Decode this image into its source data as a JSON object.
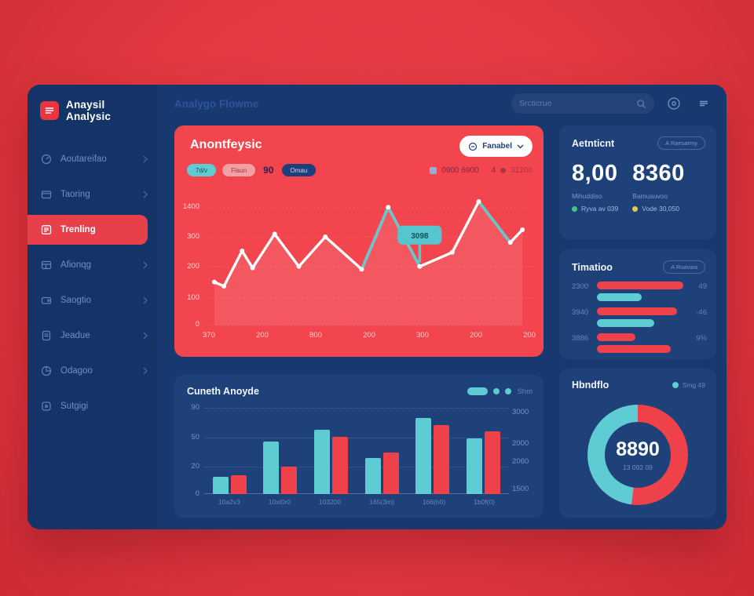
{
  "colors": {
    "bg_red": "#e33941",
    "card_red": "#f2454d",
    "accent_red": "#ef4149",
    "teal": "#5fcbd2",
    "window_navy": "#17396f",
    "card_navy": "#1e4179",
    "green_dot": "#46c483",
    "yellow_dot": "#e5c84e",
    "pink": "#f2a0a4"
  },
  "sidebar": {
    "logo_title": "Anaysil Analysic",
    "items": [
      {
        "label": "Aoutareifao",
        "icon": "analytics-icon"
      },
      {
        "label": "Taoring",
        "icon": "folder-icon"
      },
      {
        "label": "Trenling",
        "icon": "trending-icon",
        "active": true
      },
      {
        "label": "Afionqg",
        "icon": "layers-icon"
      },
      {
        "label": "Saogtio",
        "icon": "wallet-icon"
      },
      {
        "label": "Jeadue",
        "icon": "report-icon"
      },
      {
        "label": "Odagoo",
        "icon": "pie-icon"
      },
      {
        "label": "Sutgigi",
        "icon": "settings-icon"
      }
    ]
  },
  "topbar": {
    "title": "Analygo Flowme",
    "search_placeholder": "Srcticrue"
  },
  "anomaly_card": {
    "title": "Anontfeysic",
    "dropdown_label": "Fanabel",
    "pill_teal": "7d/v",
    "pill_pink": "Flaun",
    "pill_value": "90",
    "pill_navy": "Omau",
    "legend_1": "0900 6900",
    "legend_2_prefix": "4",
    "legend_2": "31200",
    "tooltip": "3098",
    "chart_data": {
      "type": "line",
      "title": "Anontfeysic",
      "x_tick_labels": [
        "370",
        "200",
        "800",
        "200",
        "300",
        "200",
        "200"
      ],
      "y_tick_labels": [
        "1400",
        "300",
        "200",
        "100",
        "0"
      ],
      "ylim": [
        0,
        450
      ],
      "points": [
        {
          "x": 0.017,
          "v": 140
        },
        {
          "x": 0.047,
          "v": 125
        },
        {
          "x": 0.104,
          "v": 250
        },
        {
          "x": 0.137,
          "v": 190
        },
        {
          "x": 0.206,
          "v": 310
        },
        {
          "x": 0.282,
          "v": 195
        },
        {
          "x": 0.365,
          "v": 300
        },
        {
          "x": 0.479,
          "v": 185
        },
        {
          "x": 0.562,
          "v": 405
        },
        {
          "x": 0.661,
          "v": 195
        },
        {
          "x": 0.763,
          "v": 245
        },
        {
          "x": 0.846,
          "v": 425
        },
        {
          "x": 0.945,
          "v": 280
        },
        {
          "x": 0.983,
          "v": 325
        }
      ],
      "teal_segments": [
        [
          7,
          9
        ],
        [
          11,
          12
        ]
      ],
      "tooltip_point": 9,
      "line_color": "#ffffff",
      "highlight_color": "#56c6ce"
    }
  },
  "stats_card": {
    "title": "Aetnticnt",
    "button_label": "A Raesarmy",
    "stats": [
      {
        "value": "8,00",
        "label": "Mihuddiso",
        "note": "Ryva av 039",
        "dot_color": "#46c483"
      },
      {
        "value": "8360",
        "label": "Bamusuvoo",
        "note": "Vode 30,050",
        "dot_color": "#e5c84e"
      }
    ]
  },
  "hbars_card": {
    "title": "Timatioo",
    "button_label": "A Ruavwa",
    "chart_data": {
      "type": "bar",
      "orientation": "horizontal",
      "rows": [
        {
          "label": "2300",
          "value_label": "49",
          "bars": [
            {
              "color": "#ef4149",
              "w": 0.95
            },
            {
              "color": "#5fcbd2",
              "w": 0.49
            }
          ]
        },
        {
          "label": "3940",
          "value_label": "-46",
          "bars": [
            {
              "color": "#ef4149",
              "w": 0.88
            },
            {
              "color": "#5fcbd2",
              "w": 0.63
            }
          ]
        },
        {
          "label": "3886",
          "value_label": "9%",
          "bars": [
            {
              "color": "#ef4149",
              "w": 0.42
            },
            {
              "color": "#ef4149",
              "w": 0.81
            }
          ]
        }
      ]
    }
  },
  "growth_card": {
    "title": "Cuneth Anoyde",
    "legend_label": "Shm",
    "chart_data": {
      "type": "bar",
      "categories": [
        "10a2v3",
        "10xt0r0",
        "103200",
        "165(3m)",
        "166(h0)",
        "1b0f(0)"
      ],
      "series": [
        {
          "name": "teal",
          "color": "#5fcbd2",
          "values": [
            20,
            60,
            73,
            41,
            87,
            63
          ]
        },
        {
          "name": "red",
          "color": "#ef4149",
          "values": [
            21,
            31,
            65,
            47,
            79,
            71
          ]
        }
      ],
      "ymax": 100,
      "y_left_labels": [
        "90",
        "50",
        "20",
        "0"
      ],
      "y_right_labels": [
        "3000",
        "2000",
        "2060",
        "1500"
      ]
    }
  },
  "donut_card": {
    "title": "Hbndflo",
    "legend": "Smg 49",
    "center_value": "8890",
    "center_sub": "13 092 09",
    "chart_data": {
      "type": "pie",
      "slices": [
        {
          "name": "red",
          "color": "#ef4149",
          "pct": 52
        },
        {
          "name": "teal",
          "color": "#5fcbd2",
          "pct": 48
        }
      ]
    }
  }
}
